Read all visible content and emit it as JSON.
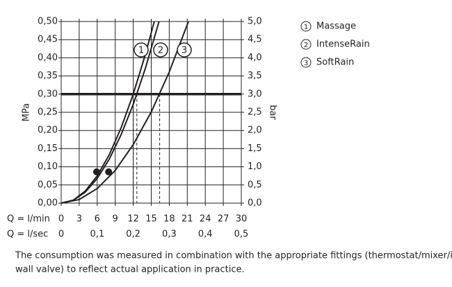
{
  "chart_data": {
    "type": "line",
    "y_axis_label": "MPa",
    "y2_axis_label": "bar",
    "x_row_label": "Q = l/min",
    "x2_row_label": "Q = l/sec",
    "xlim": [
      0,
      30
    ],
    "xticks": [
      0,
      3,
      6,
      9,
      12,
      15,
      18,
      21,
      24,
      27,
      30
    ],
    "x2lim": [
      0,
      0.5
    ],
    "x2ticks": [
      {
        "value": 0,
        "label": "0"
      },
      {
        "value": 0.1,
        "label": "0,1"
      },
      {
        "value": 0.2,
        "label": "0,2"
      },
      {
        "value": 0.3,
        "label": "0,3"
      },
      {
        "value": 0.4,
        "label": "0,4"
      },
      {
        "value": 0.5,
        "label": "0,5"
      }
    ],
    "ylim": [
      0,
      0.5
    ],
    "yticks": [
      {
        "value": 0,
        "label": "0,00"
      },
      {
        "value": 0.05,
        "label": "0,05"
      },
      {
        "value": 0.1,
        "label": "0,10"
      },
      {
        "value": 0.15,
        "label": "0,15"
      },
      {
        "value": 0.2,
        "label": "0,20"
      },
      {
        "value": 0.25,
        "label": "0,25"
      },
      {
        "value": 0.3,
        "label": "0,30"
      },
      {
        "value": 0.35,
        "label": "0,35"
      },
      {
        "value": 0.4,
        "label": "0,40"
      },
      {
        "value": 0.45,
        "label": "0,45"
      },
      {
        "value": 0.5,
        "label": "0,50"
      }
    ],
    "y2lim": [
      0,
      5
    ],
    "y2ticks": [
      {
        "value": 0,
        "label": "0,0"
      },
      {
        "value": 0.5,
        "label": "0,5"
      },
      {
        "value": 1,
        "label": "1,0"
      },
      {
        "value": 1.5,
        "label": "1,5"
      },
      {
        "value": 2,
        "label": "2,0"
      },
      {
        "value": 2.5,
        "label": "2,5"
      },
      {
        "value": 3,
        "label": "3,0"
      },
      {
        "value": 3.5,
        "label": "3,5"
      },
      {
        "value": 4,
        "label": "4,0"
      },
      {
        "value": 4.5,
        "label": "4,5"
      },
      {
        "value": 5,
        "label": "5,0"
      }
    ],
    "grid": true,
    "reference_y": 0.3,
    "drop_lines_x": [
      12,
      12.6,
      16.4
    ],
    "points": {
      "x": [
        5.9,
        7.9
      ],
      "y": [
        0.086,
        0.086
      ]
    },
    "series": [
      {
        "label": "1",
        "name": "Massage",
        "color": "#231f20",
        "x": [
          0,
          2,
          4,
          6,
          8,
          10,
          12,
          14,
          15.5
        ],
        "values": [
          0,
          0.008,
          0.033,
          0.075,
          0.133,
          0.208,
          0.3,
          0.408,
          0.5
        ]
      },
      {
        "label": "2",
        "name": "IntenseRain",
        "color": "#231f20",
        "x": [
          0,
          2,
          4,
          6,
          8,
          10,
          12,
          14,
          16.3
        ],
        "values": [
          0,
          0.008,
          0.03,
          0.068,
          0.121,
          0.189,
          0.272,
          0.37,
          0.5
        ]
      },
      {
        "label": "3",
        "name": "SoftRain",
        "color": "#231f20",
        "x": [
          0,
          3,
          6,
          9,
          12,
          15,
          18,
          21.2
        ],
        "values": [
          0,
          0.01,
          0.04,
          0.09,
          0.161,
          0.251,
          0.361,
          0.5
        ]
      }
    ]
  },
  "footer": [
    "The consumption was measured in combination with the appropriate fittings (thermostat/mixer/in-",
    "wall valve) to reflect actual application in practice."
  ]
}
